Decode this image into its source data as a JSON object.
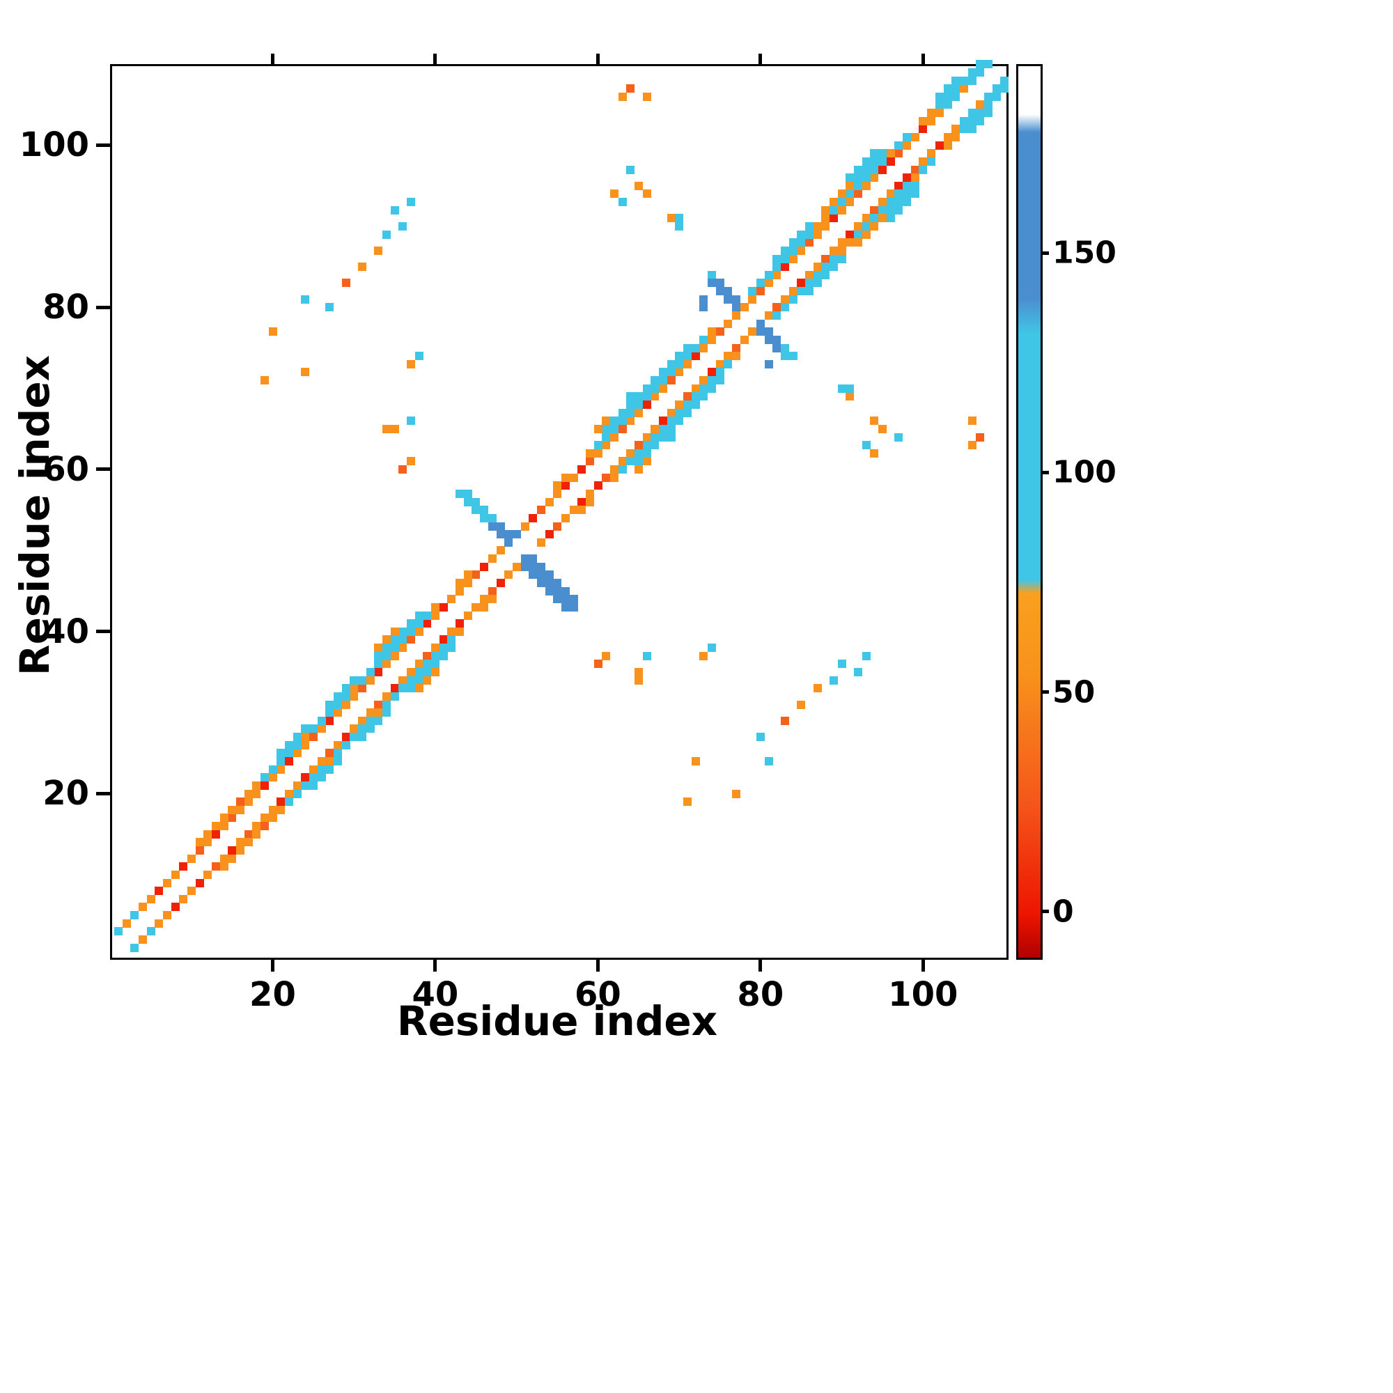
{
  "figure": {
    "background": "#ffffff"
  },
  "chart_data": {
    "type": "heatmap",
    "title": "",
    "xlabel": "Residue index",
    "ylabel": "Residue index",
    "x_range": [
      0,
      110
    ],
    "y_range": [
      0,
      110
    ],
    "x_ticks": [
      20,
      40,
      60,
      80,
      100
    ],
    "y_ticks": [
      20,
      40,
      60,
      80,
      100
    ],
    "grid": false,
    "legend": "colorbar-right",
    "colorbar": {
      "ticks": [
        0,
        50,
        100,
        150
      ],
      "range": [
        -10,
        193
      ],
      "position": "right"
    },
    "colormap_stops": [
      [
        -10,
        "#b00000"
      ],
      [
        0,
        "#ee1500"
      ],
      [
        25,
        "#f4561a"
      ],
      [
        55,
        "#f8921c"
      ],
      [
        73,
        "#f9a01e"
      ],
      [
        76,
        "#3fc6e6"
      ],
      [
        132,
        "#3fc6e6"
      ],
      [
        140,
        "#4b8ecf"
      ],
      [
        178,
        "#4b8ecf"
      ],
      [
        182,
        "#ffffff"
      ],
      [
        193,
        "#ffffff"
      ]
    ],
    "cells_symmetric": [
      [
        1,
        3,
        95
      ],
      [
        2,
        4,
        55
      ],
      [
        3,
        5,
        95
      ],
      [
        4,
        6,
        55
      ],
      [
        5,
        7,
        55
      ],
      [
        6,
        8,
        5
      ],
      [
        7,
        9,
        55
      ],
      [
        8,
        10,
        55
      ],
      [
        9,
        11,
        5
      ],
      [
        10,
        12,
        55
      ],
      [
        11,
        13,
        30
      ],
      [
        12,
        14,
        55
      ],
      [
        13,
        15,
        5
      ],
      [
        14,
        16,
        55
      ],
      [
        15,
        17,
        30
      ],
      [
        16,
        18,
        55
      ],
      [
        17,
        19,
        55
      ],
      [
        11,
        14,
        55
      ],
      [
        12,
        15,
        55
      ],
      [
        13,
        16,
        55
      ],
      [
        14,
        17,
        55
      ],
      [
        15,
        18,
        55
      ],
      [
        16,
        19,
        30
      ],
      [
        17,
        20,
        55
      ],
      [
        18,
        21,
        55
      ],
      [
        18,
        20,
        55
      ],
      [
        19,
        21,
        5
      ],
      [
        20,
        22,
        55
      ],
      [
        21,
        23,
        55
      ],
      [
        22,
        24,
        5
      ],
      [
        23,
        25,
        55
      ],
      [
        24,
        26,
        55
      ],
      [
        25,
        27,
        30
      ],
      [
        26,
        28,
        55
      ],
      [
        27,
        29,
        5
      ],
      [
        28,
        30,
        55
      ],
      [
        29,
        31,
        55
      ],
      [
        30,
        32,
        55
      ],
      [
        31,
        33,
        30
      ],
      [
        32,
        34,
        55
      ],
      [
        33,
        35,
        5
      ],
      [
        34,
        36,
        55
      ],
      [
        35,
        37,
        55
      ],
      [
        36,
        38,
        55
      ],
      [
        37,
        39,
        30
      ],
      [
        38,
        40,
        55
      ],
      [
        39,
        41,
        5
      ],
      [
        40,
        42,
        55
      ],
      [
        41,
        43,
        5
      ],
      [
        42,
        44,
        55
      ],
      [
        43,
        45,
        55
      ],
      [
        19,
        22,
        95
      ],
      [
        20,
        23,
        95
      ],
      [
        21,
        24,
        95
      ],
      [
        22,
        25,
        95
      ],
      [
        23,
        26,
        95
      ],
      [
        24,
        27,
        55
      ],
      [
        25,
        28,
        95
      ],
      [
        26,
        29,
        95
      ],
      [
        27,
        30,
        95
      ],
      [
        28,
        31,
        95
      ],
      [
        29,
        32,
        95
      ],
      [
        30,
        33,
        55
      ],
      [
        31,
        34,
        95
      ],
      [
        32,
        35,
        95
      ],
      [
        33,
        36,
        95
      ],
      [
        34,
        37,
        95
      ],
      [
        35,
        38,
        95
      ],
      [
        36,
        39,
        95
      ],
      [
        37,
        40,
        95
      ],
      [
        38,
        41,
        95
      ],
      [
        39,
        42,
        95
      ],
      [
        40,
        43,
        55
      ],
      [
        21,
        25,
        95
      ],
      [
        22,
        26,
        95
      ],
      [
        23,
        27,
        95
      ],
      [
        24,
        28,
        95
      ],
      [
        27,
        31,
        95
      ],
      [
        28,
        32,
        95
      ],
      [
        29,
        33,
        95
      ],
      [
        30,
        34,
        95
      ],
      [
        33,
        37,
        95
      ],
      [
        34,
        38,
        95
      ],
      [
        35,
        39,
        95
      ],
      [
        36,
        40,
        95
      ],
      [
        37,
        41,
        95
      ],
      [
        38,
        42,
        95
      ],
      [
        33,
        38,
        55
      ],
      [
        34,
        39,
        55
      ],
      [
        35,
        40,
        55
      ],
      [
        44,
        46,
        55
      ],
      [
        45,
        47,
        30
      ],
      [
        46,
        48,
        5
      ],
      [
        47,
        49,
        55
      ],
      [
        48,
        50,
        55
      ],
      [
        51,
        53,
        55
      ],
      [
        52,
        54,
        5
      ],
      [
        53,
        55,
        30
      ],
      [
        54,
        56,
        55
      ],
      [
        55,
        57,
        55
      ],
      [
        56,
        58,
        5
      ],
      [
        57,
        59,
        55
      ],
      [
        43,
        46,
        55
      ],
      [
        44,
        47,
        55
      ],
      [
        55,
        58,
        55
      ],
      [
        56,
        59,
        55
      ],
      [
        58,
        60,
        5
      ],
      [
        59,
        61,
        30
      ],
      [
        60,
        62,
        55
      ],
      [
        61,
        63,
        55
      ],
      [
        62,
        64,
        55
      ],
      [
        63,
        65,
        30
      ],
      [
        64,
        66,
        55
      ],
      [
        65,
        67,
        55
      ],
      [
        66,
        68,
        5
      ],
      [
        67,
        69,
        55
      ],
      [
        68,
        70,
        55
      ],
      [
        69,
        71,
        30
      ],
      [
        70,
        72,
        55
      ],
      [
        71,
        73,
        55
      ],
      [
        72,
        74,
        5
      ],
      [
        73,
        75,
        55
      ],
      [
        74,
        76,
        55
      ],
      [
        75,
        77,
        30
      ],
      [
        76,
        78,
        55
      ],
      [
        77,
        79,
        55
      ],
      [
        59,
        62,
        55
      ],
      [
        60,
        63,
        95
      ],
      [
        61,
        64,
        95
      ],
      [
        62,
        65,
        95
      ],
      [
        63,
        66,
        95
      ],
      [
        64,
        67,
        95
      ],
      [
        65,
        68,
        95
      ],
      [
        66,
        69,
        95
      ],
      [
        67,
        70,
        95
      ],
      [
        68,
        71,
        95
      ],
      [
        69,
        72,
        95
      ],
      [
        70,
        73,
        95
      ],
      [
        71,
        74,
        95
      ],
      [
        72,
        75,
        95
      ],
      [
        73,
        76,
        95
      ],
      [
        74,
        77,
        55
      ],
      [
        61,
        65,
        95
      ],
      [
        62,
        66,
        95
      ],
      [
        63,
        67,
        95
      ],
      [
        64,
        68,
        95
      ],
      [
        65,
        69,
        95
      ],
      [
        66,
        70,
        95
      ],
      [
        67,
        71,
        95
      ],
      [
        68,
        72,
        95
      ],
      [
        69,
        73,
        95
      ],
      [
        70,
        74,
        95
      ],
      [
        71,
        75,
        95
      ],
      [
        64,
        69,
        95
      ],
      [
        60,
        65,
        55
      ],
      [
        61,
        66,
        55
      ],
      [
        78,
        80,
        55
      ],
      [
        79,
        81,
        55
      ],
      [
        80,
        82,
        30
      ],
      [
        81,
        83,
        55
      ],
      [
        82,
        84,
        55
      ],
      [
        83,
        85,
        5
      ],
      [
        84,
        86,
        55
      ],
      [
        85,
        87,
        55
      ],
      [
        86,
        88,
        30
      ],
      [
        87,
        89,
        55
      ],
      [
        88,
        90,
        55
      ],
      [
        89,
        91,
        5
      ],
      [
        90,
        92,
        55
      ],
      [
        91,
        93,
        55
      ],
      [
        92,
        94,
        30
      ],
      [
        93,
        95,
        55
      ],
      [
        94,
        96,
        55
      ],
      [
        95,
        97,
        5
      ],
      [
        96,
        98,
        5
      ],
      [
        97,
        99,
        30
      ],
      [
        98,
        100,
        55
      ],
      [
        99,
        101,
        55
      ],
      [
        100,
        102,
        5
      ],
      [
        79,
        82,
        95
      ],
      [
        80,
        83,
        95
      ],
      [
        81,
        84,
        95
      ],
      [
        82,
        85,
        95
      ],
      [
        83,
        86,
        95
      ],
      [
        84,
        87,
        95
      ],
      [
        85,
        88,
        95
      ],
      [
        86,
        89,
        95
      ],
      [
        87,
        90,
        55
      ],
      [
        88,
        91,
        55
      ],
      [
        89,
        92,
        95
      ],
      [
        90,
        93,
        95
      ],
      [
        91,
        94,
        95
      ],
      [
        92,
        95,
        95
      ],
      [
        93,
        96,
        95
      ],
      [
        94,
        97,
        95
      ],
      [
        95,
        98,
        95
      ],
      [
        96,
        99,
        55
      ],
      [
        97,
        100,
        95
      ],
      [
        98,
        101,
        95
      ],
      [
        82,
        86,
        95
      ],
      [
        83,
        87,
        95
      ],
      [
        84,
        88,
        95
      ],
      [
        85,
        89,
        95
      ],
      [
        86,
        90,
        95
      ],
      [
        88,
        92,
        55
      ],
      [
        89,
        93,
        55
      ],
      [
        90,
        94,
        55
      ],
      [
        91,
        95,
        55
      ],
      [
        92,
        96,
        95
      ],
      [
        93,
        97,
        95
      ],
      [
        94,
        98,
        95
      ],
      [
        95,
        99,
        95
      ],
      [
        91,
        96,
        95
      ],
      [
        92,
        97,
        95
      ],
      [
        93,
        98,
        95
      ],
      [
        94,
        99,
        95
      ],
      [
        101,
        103,
        55
      ],
      [
        102,
        104,
        55
      ],
      [
        103,
        105,
        95
      ],
      [
        104,
        106,
        95
      ],
      [
        105,
        107,
        55
      ],
      [
        106,
        108,
        95
      ],
      [
        107,
        109,
        95
      ],
      [
        108,
        110,
        95
      ],
      [
        100,
        103,
        55
      ],
      [
        101,
        104,
        55
      ],
      [
        102,
        105,
        95
      ],
      [
        103,
        106,
        95
      ],
      [
        104,
        107,
        95
      ],
      [
        105,
        108,
        95
      ],
      [
        106,
        109,
        95
      ],
      [
        107,
        110,
        95
      ],
      [
        102,
        106,
        95
      ],
      [
        103,
        107,
        95
      ],
      [
        104,
        108,
        95
      ],
      [
        35,
        92,
        95
      ],
      [
        37,
        93,
        95
      ],
      [
        36,
        90,
        95
      ],
      [
        34,
        89,
        95
      ],
      [
        33,
        87,
        55
      ],
      [
        31,
        85,
        55
      ],
      [
        29,
        83,
        30
      ],
      [
        24,
        81,
        95
      ],
      [
        27,
        80,
        95
      ],
      [
        20,
        77,
        55
      ],
      [
        24,
        72,
        55
      ],
      [
        19,
        71,
        55
      ],
      [
        34,
        65,
        55
      ],
      [
        35,
        65,
        55
      ],
      [
        37,
        66,
        95
      ],
      [
        36,
        60,
        30
      ],
      [
        37,
        61,
        55
      ],
      [
        63,
        106,
        55
      ],
      [
        64,
        107,
        30
      ],
      [
        66,
        106,
        55
      ],
      [
        64,
        97,
        95
      ],
      [
        62,
        94,
        55
      ],
      [
        66,
        94,
        55
      ],
      [
        69,
        91,
        55
      ],
      [
        70,
        90,
        95
      ],
      [
        70,
        91,
        95
      ],
      [
        63,
        93,
        95
      ],
      [
        65,
        95,
        55
      ],
      [
        37,
        73,
        55
      ],
      [
        38,
        74,
        95
      ]
    ],
    "cells": [
      [
        43,
        57,
        95
      ],
      [
        44,
        57,
        95
      ],
      [
        44,
        56,
        95
      ],
      [
        45,
        56,
        95
      ],
      [
        45,
        55,
        95
      ],
      [
        46,
        55,
        95
      ],
      [
        46,
        54,
        95
      ],
      [
        47,
        54,
        95
      ],
      [
        47,
        53,
        150
      ],
      [
        48,
        53,
        150
      ],
      [
        48,
        52,
        150
      ],
      [
        49,
        52,
        150
      ],
      [
        49,
        51,
        150
      ],
      [
        50,
        52,
        150
      ],
      [
        51,
        49,
        150
      ],
      [
        52,
        49,
        150
      ],
      [
        52,
        48,
        150
      ],
      [
        53,
        48,
        150
      ],
      [
        53,
        47,
        150
      ],
      [
        53,
        46,
        150
      ],
      [
        54,
        47,
        150
      ],
      [
        54,
        46,
        150
      ],
      [
        54,
        45,
        150
      ],
      [
        55,
        46,
        150
      ],
      [
        55,
        45,
        150
      ],
      [
        55,
        44,
        150
      ],
      [
        56,
        45,
        150
      ],
      [
        56,
        44,
        150
      ],
      [
        56,
        43,
        150
      ],
      [
        57,
        44,
        150
      ],
      [
        57,
        43,
        150
      ],
      [
        51,
        48,
        150
      ],
      [
        52,
        47,
        150
      ],
      [
        74,
        84,
        95
      ],
      [
        74,
        83,
        150
      ],
      [
        75,
        83,
        150
      ],
      [
        75,
        82,
        150
      ],
      [
        76,
        82,
        150
      ],
      [
        76,
        81,
        150
      ],
      [
        77,
        81,
        150
      ],
      [
        77,
        80,
        150
      ],
      [
        73,
        81,
        150
      ],
      [
        73,
        80,
        150
      ],
      [
        80,
        78,
        150
      ],
      [
        80,
        77,
        150
      ],
      [
        81,
        77,
        150
      ],
      [
        81,
        76,
        150
      ],
      [
        82,
        76,
        150
      ],
      [
        82,
        75,
        150
      ],
      [
        83,
        75,
        95
      ],
      [
        83,
        74,
        95
      ],
      [
        81,
        73,
        150
      ],
      [
        84,
        74,
        95
      ]
    ]
  }
}
